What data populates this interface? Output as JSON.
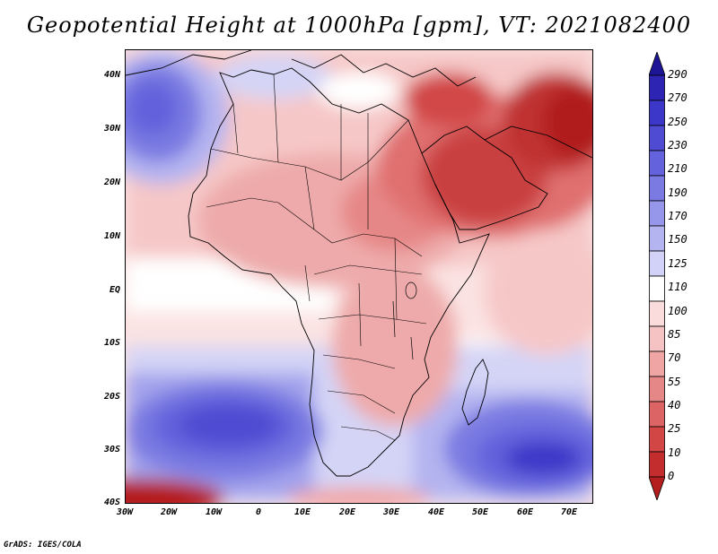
{
  "title": "Geopotential Height at 1000hPa [gpm], VT: 2021082400",
  "footer": "GrADS: IGES/COLA",
  "map": {
    "variable": "Geopotential Height at 1000hPa",
    "units": "gpm",
    "valid_time": "2021082400",
    "lat_labels": [
      "40N",
      "30N",
      "20N",
      "10N",
      "EQ",
      "10S",
      "20S",
      "30S",
      "40S"
    ],
    "lon_labels": [
      "30W",
      "20W",
      "10W",
      "0",
      "10E",
      "20E",
      "30E",
      "40E",
      "50E",
      "60E",
      "70E"
    ]
  },
  "colorbar": {
    "labels": [
      "290",
      "270",
      "250",
      "230",
      "210",
      "190",
      "170",
      "150",
      "125",
      "110",
      "100",
      "85",
      "70",
      "55",
      "40",
      "25",
      "10",
      "0"
    ],
    "colors": [
      "#1e1496",
      "#2d24b4",
      "#3c37c8",
      "#4f4bd2",
      "#6462dc",
      "#7a7ae2",
      "#9696eb",
      "#b4b4f0",
      "#d2d2f8",
      "#ffffff",
      "#fadcdc",
      "#f5c3c3",
      "#f0a5a5",
      "#e68787",
      "#dc6464",
      "#d24646",
      "#c32d2d",
      "#b41e1e"
    ]
  }
}
